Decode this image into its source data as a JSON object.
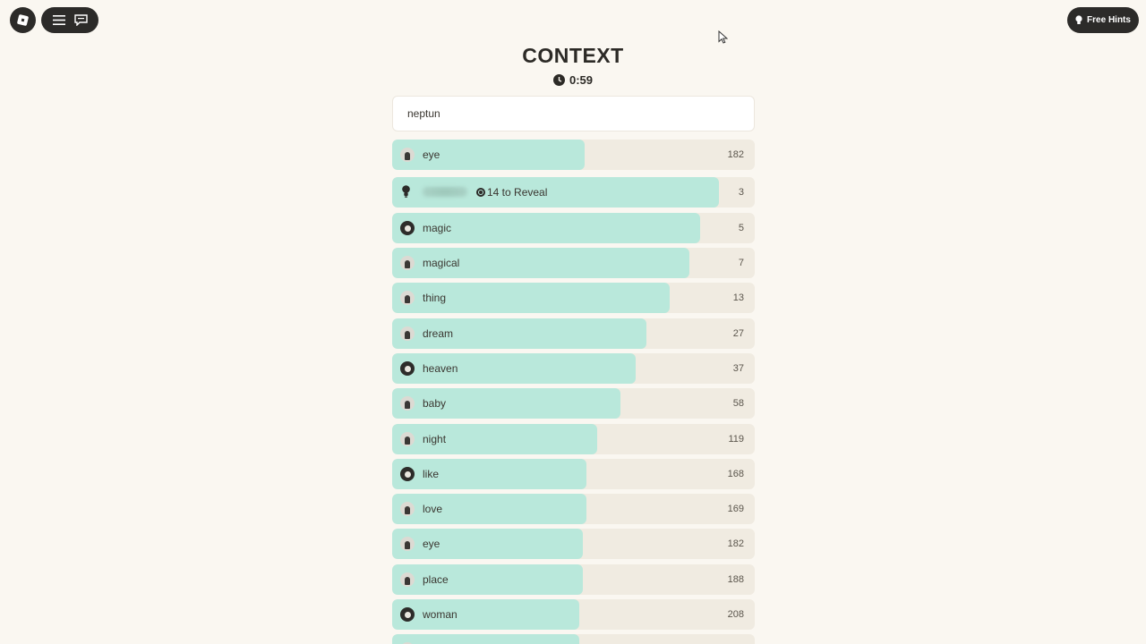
{
  "header": {
    "title": "CONTEXT",
    "timer": "0:59",
    "free_hints_label": "Free Hints"
  },
  "input": {
    "value": "neptun",
    "placeholder": ""
  },
  "hint_row": {
    "rank": "3",
    "reveal_label": "14 to Reveal",
    "fill": 0.9
  },
  "guesses": [
    {
      "word": "eye",
      "rank": "182",
      "fill": 0.53
    },
    {
      "word": "magic",
      "rank": "5",
      "fill": 0.85
    },
    {
      "word": "magical",
      "rank": "7",
      "fill": 0.82
    },
    {
      "word": "thing",
      "rank": "13",
      "fill": 0.765
    },
    {
      "word": "dream",
      "rank": "27",
      "fill": 0.7
    },
    {
      "word": "heaven",
      "rank": "37",
      "fill": 0.672
    },
    {
      "word": "baby",
      "rank": "58",
      "fill": 0.63
    },
    {
      "word": "night",
      "rank": "119",
      "fill": 0.565
    },
    {
      "word": "like",
      "rank": "168",
      "fill": 0.535
    },
    {
      "word": "love",
      "rank": "169",
      "fill": 0.535
    },
    {
      "word": "eye",
      "rank": "182",
      "fill": 0.527
    },
    {
      "word": "place",
      "rank": "188",
      "fill": 0.525
    },
    {
      "word": "woman",
      "rank": "208",
      "fill": 0.515
    },
    {
      "word": "",
      "rank": "",
      "fill": 0.515
    }
  ],
  "colors": {
    "fill": "#b9e8db",
    "track": "#f0ebe1",
    "dark": "#2c2b29"
  },
  "icons": [
    "roblox-logo-icon",
    "menu-icon",
    "chat-icon",
    "lightbulb-icon",
    "clock-icon",
    "coin-icon"
  ]
}
